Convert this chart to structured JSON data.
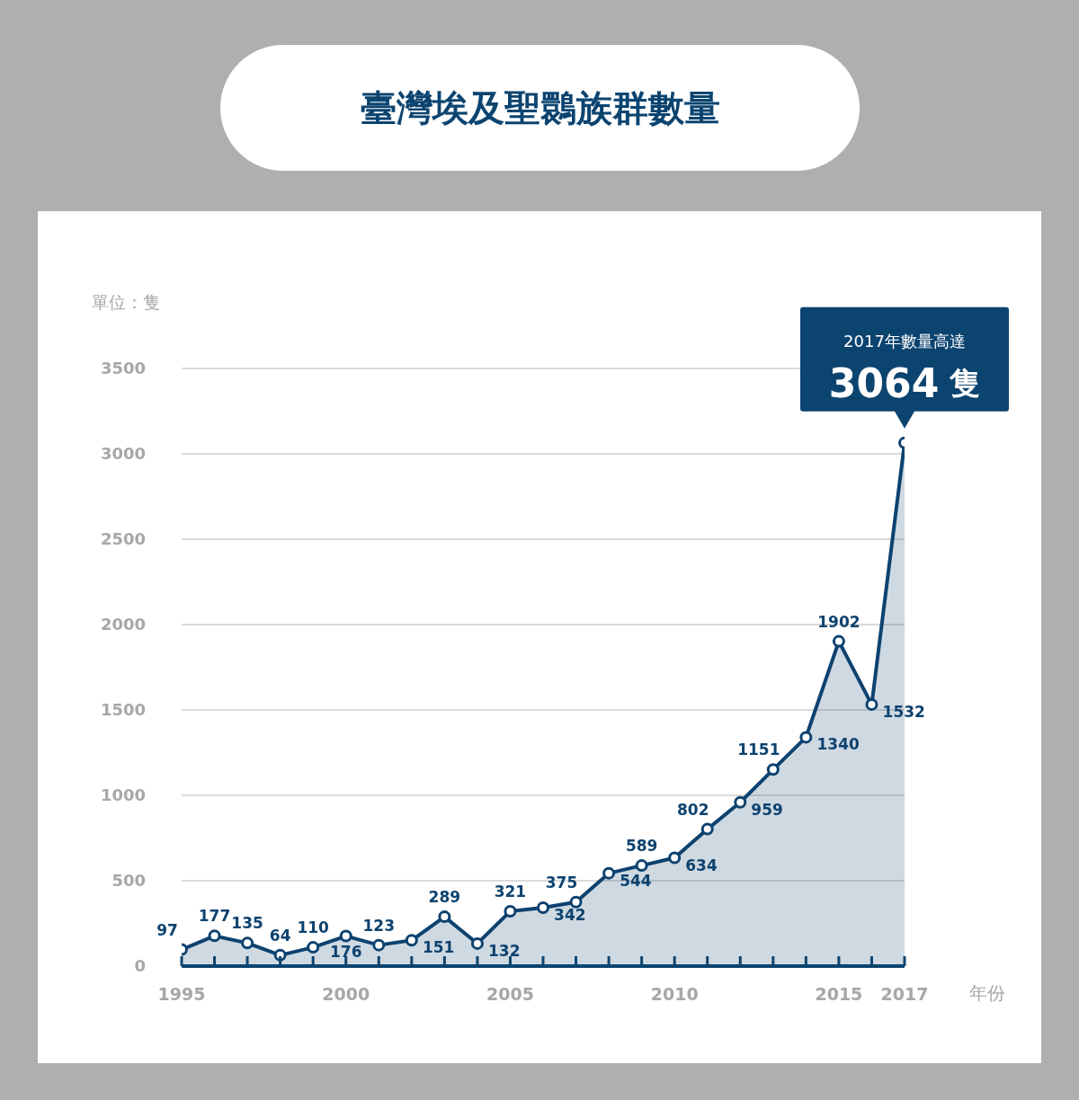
{
  "chart_data": {
    "type": "area",
    "title": "臺灣埃及聖䴉族群數量",
    "xlabel": "年份",
    "ylabel": "單位：隻",
    "x": [
      1995,
      1996,
      1997,
      1998,
      1999,
      2000,
      2001,
      2002,
      2003,
      2004,
      2005,
      2006,
      2007,
      2008,
      2009,
      2010,
      2011,
      2012,
      2013,
      2014,
      2015,
      2016,
      2017
    ],
    "values": [
      97,
      177,
      135,
      64,
      110,
      176,
      123,
      151,
      289,
      132,
      321,
      342,
      375,
      544,
      589,
      634,
      802,
      959,
      1151,
      1340,
      1902,
      1532,
      3064
    ],
    "value_labels": [
      "97",
      "177",
      "135",
      "64",
      "110",
      "176",
      "123",
      "151",
      "289",
      "132",
      "321",
      "342",
      "375",
      "544",
      "589",
      "634",
      "802",
      "959",
      "1151",
      "1340",
      "1902",
      "1532",
      "3064 隻"
    ],
    "color": "#0d426f",
    "marker": "circle",
    "line_style": "solid",
    "grid": "y",
    "xlim": [
      1995,
      2017
    ],
    "xticks": [
      1995,
      {
        "value": 1996,
        "label": null
      },
      {
        "value": 1997,
        "label": null
      },
      {
        "value": 1998,
        "label": null
      },
      {
        "value": 1999,
        "label": null
      },
      2000,
      {
        "value": 2001,
        "label": null
      },
      {
        "value": 2002,
        "label": null
      },
      {
        "value": 2003,
        "label": null
      },
      {
        "value": 2004,
        "label": null
      },
      2005,
      {
        "value": 2006,
        "label": null
      },
      {
        "value": 2007,
        "label": null
      },
      {
        "value": 2008,
        "label": null
      },
      {
        "value": 2009,
        "label": null
      },
      2010,
      {
        "value": 2011,
        "label": null
      },
      {
        "value": 2012,
        "label": null
      },
      {
        "value": 2013,
        "label": null
      },
      {
        "value": 2014,
        "label": null
      },
      2015,
      {
        "value": 2016,
        "label": null
      },
      2017
    ],
    "ylim": [
      0,
      3500
    ],
    "yticks": [
      0,
      500,
      1000,
      1500,
      2000,
      2500,
      3000,
      3500
    ],
    "annotations": [
      "2017年數量高達"
    ]
  }
}
